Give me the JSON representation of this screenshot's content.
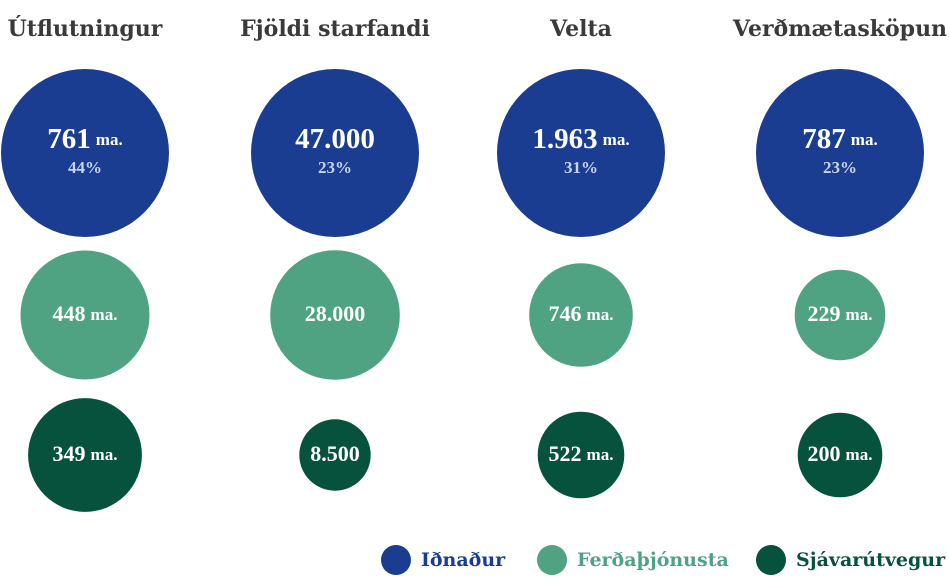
{
  "chart_data": {
    "type": "bubble",
    "categories": [
      "Útflutningur",
      "Fjöldi starfandi",
      "Velta",
      "Verðmætasköpun"
    ],
    "series": [
      {
        "name": "Iðnaður",
        "color": "#1a3d91",
        "values": [
          761,
          47000,
          1963,
          787
        ],
        "labels": [
          "761",
          "47.000",
          "1.963",
          "787"
        ],
        "units": [
          "ma.",
          "",
          "ma.",
          "ma."
        ],
        "shares": [
          "44%",
          "23%",
          "31%",
          "23%"
        ]
      },
      {
        "name": "Ferðaþjónusta",
        "color": "#4fa383",
        "values": [
          448,
          28000,
          746,
          229
        ],
        "labels": [
          "448",
          "28.000",
          "746",
          "229"
        ],
        "units": [
          "ma.",
          "",
          "ma.",
          "ma."
        ]
      },
      {
        "name": "Sjávarútvegur",
        "color": "#07523d",
        "values": [
          349,
          8500,
          522,
          200
        ],
        "labels": [
          "349",
          "8.500",
          "522",
          "200"
        ],
        "units": [
          "ma.",
          "",
          "ma.",
          "ma."
        ]
      }
    ],
    "legend_position": "bottom-right"
  }
}
